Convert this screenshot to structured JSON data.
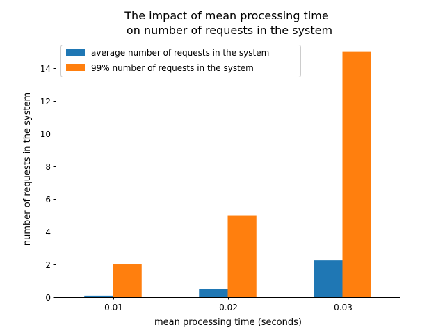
{
  "chart_data": {
    "type": "bar",
    "title_lines": [
      "The impact of mean processing time",
      "on number of requests in the system"
    ],
    "xlabel": "mean processing time (seconds)",
    "ylabel": "number of requests in the system",
    "categories": [
      "0.01",
      "0.02",
      "0.03"
    ],
    "ylim": [
      0,
      15.75
    ],
    "yticks": [
      0,
      2,
      4,
      6,
      8,
      10,
      12,
      14
    ],
    "grid": false,
    "legend_position": "top-left",
    "series": [
      {
        "name": "average number of requests in the system",
        "color": "#1f77b4",
        "values": [
          0.09,
          0.5,
          2.25
        ]
      },
      {
        "name": "99% number of requests in the system",
        "color": "#ff7f0e",
        "values": [
          2,
          5,
          15
        ]
      }
    ]
  }
}
